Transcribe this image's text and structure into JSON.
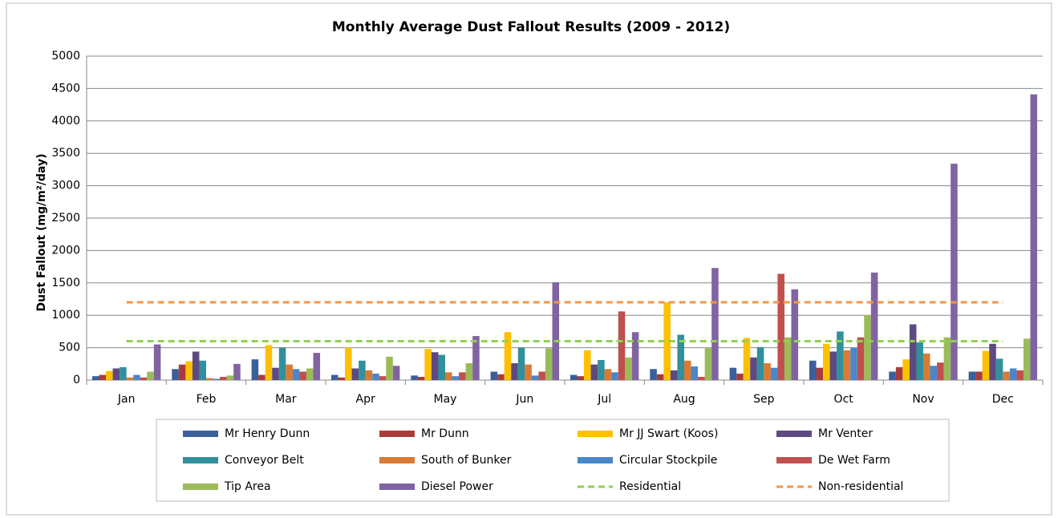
{
  "chart_data": {
    "type": "bar",
    "title": "Monthly Average Dust Fallout Results (2009 - 2012)",
    "y_label": "Dust Fallout (mg/m²/day)",
    "categories": [
      "Jan",
      "Feb",
      "Mar",
      "Apr",
      "May",
      "Jun",
      "Jul",
      "Aug",
      "Sep",
      "Oct",
      "Nov",
      "Dec"
    ],
    "ylim": [
      0,
      5000
    ],
    "yticks": [
      0,
      500,
      1000,
      1500,
      2000,
      2500,
      3000,
      3500,
      4000,
      4500,
      5000
    ],
    "grid": true,
    "legend": "bottom",
    "series": [
      {
        "name": "Mr Henry Dunn",
        "color": "#3a5f9a",
        "values": [
          60,
          170,
          320,
          80,
          70,
          130,
          80,
          170,
          190,
          300,
          130,
          130
        ]
      },
      {
        "name": "Mr Dunn",
        "color": "#a83c3a",
        "values": [
          80,
          240,
          80,
          40,
          50,
          90,
          60,
          90,
          100,
          190,
          200,
          130
        ]
      },
      {
        "name": "Mr JJ Swart (Koos)",
        "color": "#ffc000",
        "values": [
          140,
          290,
          540,
          500,
          480,
          740,
          460,
          1200,
          650,
          560,
          320,
          450
        ]
      },
      {
        "name": "Mr Venter",
        "color": "#5e4a82",
        "values": [
          180,
          440,
          190,
          180,
          430,
          260,
          240,
          150,
          350,
          440,
          860,
          560
        ]
      },
      {
        "name": "Conveyor Belt",
        "color": "#31909c",
        "values": [
          200,
          300,
          500,
          300,
          390,
          500,
          310,
          700,
          510,
          750,
          580,
          330
        ]
      },
      {
        "name": "South of Bunker",
        "color": "#d97b34",
        "values": [
          40,
          30,
          240,
          150,
          120,
          240,
          170,
          300,
          260,
          460,
          410,
          130
        ]
      },
      {
        "name": "Circular Stockpile",
        "color": "#4a86c8",
        "values": [
          80,
          20,
          170,
          100,
          60,
          70,
          120,
          210,
          190,
          500,
          220,
          180
        ]
      },
      {
        "name": "De Wet Farm",
        "color": "#c0504d",
        "values": [
          40,
          50,
          130,
          60,
          120,
          130,
          1060,
          50,
          1640,
          660,
          270,
          150
        ]
      },
      {
        "name": "Tip Area",
        "color": "#9bbb59",
        "values": [
          130,
          70,
          180,
          360,
          260,
          490,
          350,
          500,
          660,
          1000,
          660,
          640
        ]
      },
      {
        "name": "Diesel Power",
        "color": "#8064a2",
        "values": [
          550,
          250,
          420,
          220,
          680,
          1510,
          740,
          1730,
          1400,
          1660,
          3340,
          4410
        ]
      },
      {
        "name": "Residential",
        "color": "#92d050",
        "kind": "line",
        "values": [
          600,
          600,
          600,
          600,
          600,
          600,
          600,
          600,
          600,
          600,
          600,
          600
        ]
      },
      {
        "name": "Non-residential",
        "color": "#f79646",
        "kind": "line",
        "values": [
          1200,
          1200,
          1200,
          1200,
          1200,
          1200,
          1200,
          1200,
          1200,
          1200,
          1200,
          1200
        ]
      }
    ]
  }
}
